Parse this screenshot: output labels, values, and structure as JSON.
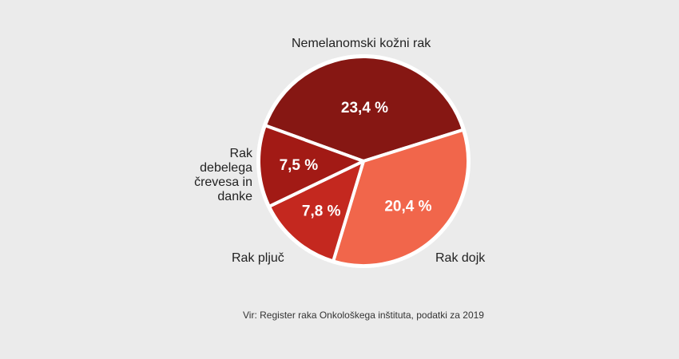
{
  "chart_data": {
    "type": "pie",
    "slices": [
      {
        "label": "Nemelanomski kožni rak",
        "value": 23.4,
        "value_label": "23,4 %",
        "color": "#861713"
      },
      {
        "label": "Rak dojk",
        "value": 20.4,
        "value_label": "20,4 %",
        "color": "#f1664b"
      },
      {
        "label": "Rak pljuč",
        "value": 7.8,
        "value_label": "7,8 %",
        "color": "#c4281f"
      },
      {
        "label": "Rak debelega črevesa in danke",
        "value": 7.5,
        "value_label": "7,5 %",
        "color": "#a21a15"
      }
    ],
    "source": "Vir: Register raka Onkološkega inštituta, podatki za 2019"
  }
}
